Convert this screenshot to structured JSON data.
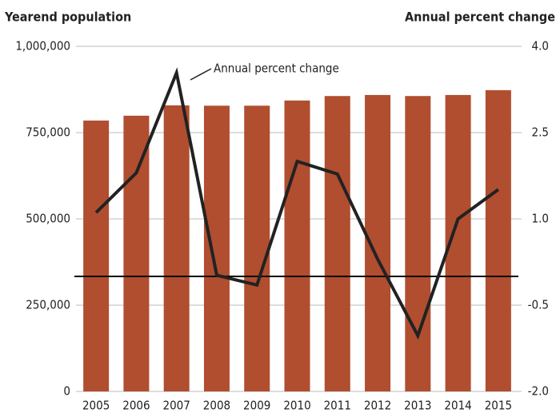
{
  "chart_data": {
    "type": "bar_line",
    "y_axis_label": "Yearend population",
    "y2_axis_label": "Annual percent change",
    "annotation": "Annual percent change",
    "categories": [
      "2005",
      "2006",
      "2007",
      "2008",
      "2009",
      "2010",
      "2011",
      "2012",
      "2013",
      "2014",
      "2015"
    ],
    "series": [
      {
        "name": "Yearend population",
        "type": "bar",
        "color": "#b04e2f",
        "values": [
          785000,
          799000,
          829000,
          828000,
          828000,
          843000,
          856000,
          859000,
          856000,
          859000,
          873000
        ]
      },
      {
        "name": "Annual percent change",
        "type": "line",
        "axis": "y2",
        "color": "#222222",
        "values": [
          1.11,
          1.8,
          3.54,
          0.02,
          -0.15,
          2.0,
          1.78,
          0.3,
          -1.03,
          1.0,
          1.51
        ]
      }
    ],
    "ylim": [
      0,
      1000000
    ],
    "yticks": [
      0,
      {
        "value": 250000,
        "label": "250,000"
      },
      {
        "value": 500000,
        "label": "500,000"
      },
      {
        "value": 750000,
        "label": "750,000"
      },
      {
        "value": 1000000,
        "label": "1,000,000"
      }
    ],
    "y2lim": [
      -2,
      4
    ],
    "y2ticks": [
      {
        "value": -2,
        "label": "-2.0"
      },
      -0.5,
      {
        "value": 1,
        "label": "1.0"
      },
      2.5,
      {
        "value": 4,
        "label": "4.0"
      }
    ],
    "grid": true,
    "zero_line": "y2"
  }
}
